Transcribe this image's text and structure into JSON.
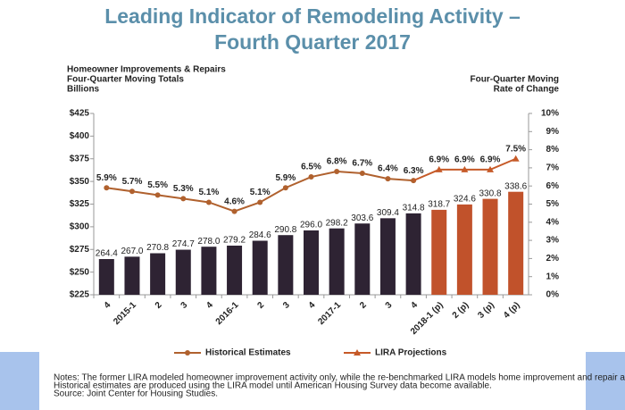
{
  "chart_data": {
    "type": "bar-line",
    "title": "Leading Indicator of Remodeling Activity – Fourth Quarter 2017",
    "y_label": [
      "Homeowner Improvements & Repairs",
      "Four-Quarter Moving Totals",
      "Billions"
    ],
    "y2_label": [
      "Four-Quarter Moving",
      "Rate of Change"
    ],
    "categories": [
      "4",
      "2015-1",
      "2",
      "3",
      "4",
      "2016-1",
      "2",
      "3",
      "4",
      "2017-1",
      "2",
      "3",
      "4",
      "2018-1 (p)",
      "2 (p)",
      "3 (p)",
      "4 (p)"
    ],
    "series": [
      {
        "name": "Historical Estimates",
        "color": "#b0612e",
        "bar_color": "#2e2333",
        "marker": "circle",
        "bar_values": [
          264.4,
          267.0,
          270.8,
          274.7,
          278.0,
          279.2,
          284.6,
          290.8,
          296.0,
          298.2,
          303.6,
          309.4,
          314.8,
          null,
          null,
          null,
          null
        ],
        "bar_value_labels": [
          "264.4",
          "267.0",
          "270.8",
          "274.7",
          "278.0",
          "279.2",
          "284.6",
          "290.8",
          "296.0",
          "298.2",
          "303.6",
          "309.4",
          "314.8",
          null,
          null,
          null,
          null
        ],
        "values": [
          5.9,
          5.7,
          5.5,
          5.3,
          5.1,
          4.6,
          5.1,
          5.9,
          6.5,
          6.8,
          6.7,
          6.4,
          6.3,
          null,
          null,
          null,
          null
        ],
        "value_labels": [
          "5.9%",
          "5.7%",
          "5.5%",
          "5.3%",
          "5.1%",
          "4.6%",
          "5.1%",
          "5.9%",
          "6.5%",
          "6.8%",
          "6.7%",
          "6.4%",
          "6.3%",
          null,
          null,
          null,
          null
        ]
      },
      {
        "name": "LIRA Projections",
        "color": "#c65a28",
        "bar_color": "#c1522b",
        "marker": "triangle",
        "bar_values": [
          null,
          null,
          null,
          null,
          null,
          null,
          null,
          null,
          null,
          null,
          null,
          null,
          null,
          318.7,
          324.6,
          330.8,
          338.6
        ],
        "bar_value_labels": [
          null,
          null,
          null,
          null,
          null,
          null,
          null,
          null,
          null,
          null,
          null,
          null,
          null,
          "318.7",
          "324.6",
          "330.8",
          "338.6"
        ],
        "values": [
          null,
          null,
          null,
          null,
          null,
          null,
          null,
          null,
          null,
          null,
          null,
          null,
          null,
          6.9,
          6.9,
          6.9,
          7.5
        ],
        "value_labels": [
          null,
          null,
          null,
          null,
          null,
          null,
          null,
          null,
          null,
          null,
          null,
          null,
          null,
          "6.9%",
          "6.9%",
          "6.9%",
          "7.5%"
        ]
      }
    ],
    "ylim": [
      225,
      425
    ],
    "yticks": [
      {
        "value": 225,
        "label": "$225"
      },
      {
        "value": 250,
        "label": "$250"
      },
      {
        "value": 275,
        "label": "$275"
      },
      {
        "value": 300,
        "label": "$300"
      },
      {
        "value": 325,
        "label": "$325"
      },
      {
        "value": 350,
        "label": "$350"
      },
      {
        "value": 375,
        "label": "$375"
      },
      {
        "value": 400,
        "label": "$400"
      },
      {
        "value": 425,
        "label": "$425"
      }
    ],
    "y2lim": [
      0,
      10
    ],
    "y2ticks": [
      {
        "value": 0,
        "label": "0%"
      },
      {
        "value": 1,
        "label": "1%"
      },
      {
        "value": 2,
        "label": "2%"
      },
      {
        "value": 3,
        "label": "3%"
      },
      {
        "value": 4,
        "label": "4%"
      },
      {
        "value": 5,
        "label": "5%"
      },
      {
        "value": 6,
        "label": "6%"
      },
      {
        "value": 7,
        "label": "7%"
      },
      {
        "value": 8,
        "label": "8%"
      },
      {
        "value": 9,
        "label": "9%"
      },
      {
        "value": 10,
        "label": "10%"
      }
    ],
    "grid": false,
    "legend": "bottom",
    "notes": [
      "Notes: The former LIRA modeled homeowner improvement activity only, while the re-benchmarked LIRA models home improvement and repair activity.",
      "Historical estimates are produced using the LIRA model until American Housing Survey data become available.",
      "Source: Joint Center for Housing Studies."
    ]
  }
}
